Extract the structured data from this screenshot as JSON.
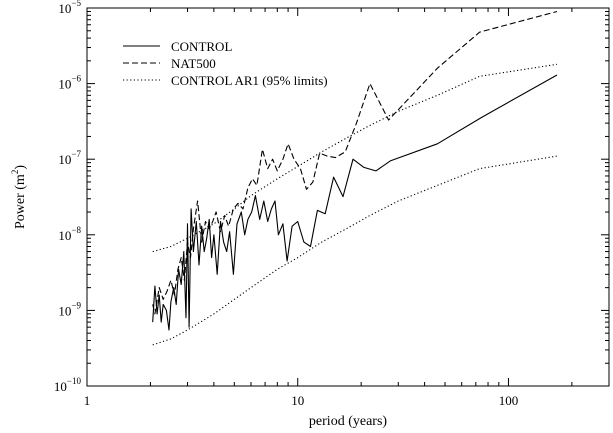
{
  "chart_data": {
    "type": "line",
    "xlabel": "period (years)",
    "ylabel": "Power (m",
    "ylabel_sup": "2",
    "ylabel_close": ")",
    "x_scale": "log",
    "y_scale": "log",
    "xlim": [
      1,
      300
    ],
    "ylim": [
      1e-10,
      1e-05
    ],
    "x_ticks": [
      {
        "value": 1,
        "label": "1"
      },
      {
        "value": 10,
        "label": "10"
      },
      {
        "value": 100,
        "label": "100"
      }
    ],
    "y_ticks": [
      {
        "value": 1e-05,
        "base": "10",
        "exp": "−5"
      },
      {
        "value": 1e-06,
        "base": "10",
        "exp": "−6"
      },
      {
        "value": 1e-07,
        "base": "10",
        "exp": "−7"
      },
      {
        "value": 1e-08,
        "base": "10",
        "exp": "−8"
      },
      {
        "value": 1e-09,
        "base": "10",
        "exp": "−9"
      },
      {
        "value": 1e-10,
        "base": "10",
        "exp": "−10"
      }
    ],
    "grid": false,
    "legend_position": "top-left",
    "series": [
      {
        "name": "CONTROL",
        "style": "solid",
        "color": "#000000",
        "points": [
          [
            2.05,
            7e-10
          ],
          [
            2.1,
            2.1e-09
          ],
          [
            2.15,
            9e-10
          ],
          [
            2.2,
            1.6e-09
          ],
          [
            2.25,
            7e-10
          ],
          [
            2.3,
            1.2e-09
          ],
          [
            2.38,
            1e-09
          ],
          [
            2.45,
            5.5e-10
          ],
          [
            2.5,
            1.3e-09
          ],
          [
            2.58,
            2e-09
          ],
          [
            2.65,
            1.2e-09
          ],
          [
            2.72,
            3.5e-09
          ],
          [
            2.8,
            2.2e-09
          ],
          [
            2.88,
            6e-09
          ],
          [
            2.95,
            8e-10
          ],
          [
            3.0,
            1.4e-08
          ],
          [
            3.05,
            6e-10
          ],
          [
            3.12,
            2.2e-08
          ],
          [
            3.2,
            6e-09
          ],
          [
            3.3,
            1.5e-08
          ],
          [
            3.4,
            4e-09
          ],
          [
            3.5,
            1.3e-08
          ],
          [
            3.6,
            6e-09
          ],
          [
            3.7,
            9e-09
          ],
          [
            3.8,
            1.6e-08
          ],
          [
            3.9,
            5e-09
          ],
          [
            4.0,
            1e-08
          ],
          [
            4.15,
            3e-09
          ],
          [
            4.3,
            1.5e-08
          ],
          [
            4.45,
            8e-09
          ],
          [
            4.6,
            6e-09
          ],
          [
            4.75,
            1.1e-08
          ],
          [
            4.95,
            3e-09
          ],
          [
            5.15,
            1.4e-08
          ],
          [
            5.4,
            2e-08
          ],
          [
            5.6,
            1e-08
          ],
          [
            5.8,
            1.6e-08
          ],
          [
            6.05,
            2e-08
          ],
          [
            6.3,
            3.3e-08
          ],
          [
            6.6,
            1.6e-08
          ],
          [
            6.9,
            2.8e-08
          ],
          [
            7.2,
            1.5e-08
          ],
          [
            7.5,
            2.2e-08
          ],
          [
            7.8,
            2.8e-08
          ],
          [
            8.1,
            1e-08
          ],
          [
            8.5,
            1.4e-08
          ],
          [
            8.9,
            4.5e-09
          ],
          [
            9.4,
            1.3e-08
          ],
          [
            10.0,
            1.5e-08
          ],
          [
            10.7,
            8e-09
          ],
          [
            11.5,
            7e-09
          ],
          [
            12.4,
            2.1e-08
          ],
          [
            13.5,
            1.9e-08
          ],
          [
            14.8,
            5.8e-08
          ],
          [
            16.4,
            3.2e-08
          ],
          [
            18.3,
            1e-07
          ],
          [
            20.6,
            7.8e-08
          ],
          [
            23.5,
            7e-08
          ],
          [
            27.5,
            9.5e-08
          ],
          [
            46.0,
            1.6e-07
          ],
          [
            75.0,
            3.6e-07
          ],
          [
            170.0,
            1.3e-06
          ]
        ]
      },
      {
        "name": "NAT500",
        "style": "dashed",
        "color": "#000000",
        "points": [
          [
            2.05,
            1.2e-09
          ],
          [
            2.1,
            9e-10
          ],
          [
            2.2,
            2e-09
          ],
          [
            2.3,
            1.4e-09
          ],
          [
            2.4,
            1.8e-09
          ],
          [
            2.5,
            2.5e-09
          ],
          [
            2.6,
            1.6e-09
          ],
          [
            2.7,
            3.5e-09
          ],
          [
            2.8,
            5e-09
          ],
          [
            2.9,
            2.5e-09
          ],
          [
            3.0,
            8e-09
          ],
          [
            3.1,
            5e-09
          ],
          [
            3.2,
            1.2e-08
          ],
          [
            3.35,
            2.8e-08
          ],
          [
            3.5,
            8e-09
          ],
          [
            3.65,
            1.5e-08
          ],
          [
            3.8,
            1.2e-08
          ],
          [
            3.95,
            1.5e-08
          ],
          [
            4.1,
            2e-08
          ],
          [
            4.3,
            1.1e-08
          ],
          [
            4.5,
            1.8e-08
          ],
          [
            4.7,
            1.3e-08
          ],
          [
            4.95,
            2.2e-08
          ],
          [
            5.2,
            2.6e-08
          ],
          [
            5.5,
            2.2e-08
          ],
          [
            5.8,
            4.2e-08
          ],
          [
            6.1,
            5.5e-08
          ],
          [
            6.4,
            4.5e-08
          ],
          [
            6.8,
            1.35e-07
          ],
          [
            7.2,
            7.5e-08
          ],
          [
            7.6,
            1e-07
          ],
          [
            8.0,
            7e-08
          ],
          [
            8.5,
            1e-07
          ],
          [
            9.0,
            1.6e-07
          ],
          [
            9.6,
            1e-07
          ],
          [
            10.3,
            7.5e-08
          ],
          [
            11.0,
            4e-08
          ],
          [
            11.8,
            5e-08
          ],
          [
            12.7,
            1.2e-07
          ],
          [
            13.8,
            1.1e-07
          ],
          [
            15.1,
            1.05e-07
          ],
          [
            16.8,
            1.25e-07
          ],
          [
            19.0,
            3e-07
          ],
          [
            22.0,
            1e-06
          ],
          [
            27.0,
            3.3e-07
          ],
          [
            46.0,
            1.6e-06
          ],
          [
            73.0,
            4.8e-06
          ],
          [
            170.0,
            9e-06
          ]
        ]
      },
      {
        "name": "CONTROL AR1 (95% limits)",
        "style": "dotted",
        "color": "#000000",
        "points": [
          [
            2.05,
            6e-09
          ],
          [
            2.5,
            7e-09
          ],
          [
            3.0,
            9e-09
          ],
          [
            4.0,
            1.4e-08
          ],
          [
            5.0,
            2.2e-08
          ],
          [
            6.0,
            3.3e-08
          ],
          [
            8.0,
            5.5e-08
          ],
          [
            10.0,
            8e-08
          ],
          [
            13.0,
            1.25e-07
          ],
          [
            17.0,
            1.9e-07
          ],
          [
            22.0,
            2.8e-07
          ],
          [
            30.0,
            4.3e-07
          ],
          [
            46.0,
            7e-07
          ],
          [
            73.0,
            1.25e-06
          ],
          [
            170.0,
            1.8e-06
          ]
        ]
      },
      {
        "name": "",
        "style": "dotted",
        "color": "#000000",
        "points": [
          [
            2.05,
            3.5e-10
          ],
          [
            2.5,
            4.2e-10
          ],
          [
            3.0,
            5.5e-10
          ],
          [
            4.0,
            9e-10
          ],
          [
            5.0,
            1.4e-09
          ],
          [
            6.0,
            2e-09
          ],
          [
            8.0,
            3.5e-09
          ],
          [
            10.0,
            5e-09
          ],
          [
            13.0,
            8e-09
          ],
          [
            17.0,
            1.2e-08
          ],
          [
            22.0,
            1.8e-08
          ],
          [
            30.0,
            2.8e-08
          ],
          [
            46.0,
            4.5e-08
          ],
          [
            73.0,
            7.5e-08
          ],
          [
            170.0,
            1.1e-07
          ]
        ]
      }
    ]
  }
}
